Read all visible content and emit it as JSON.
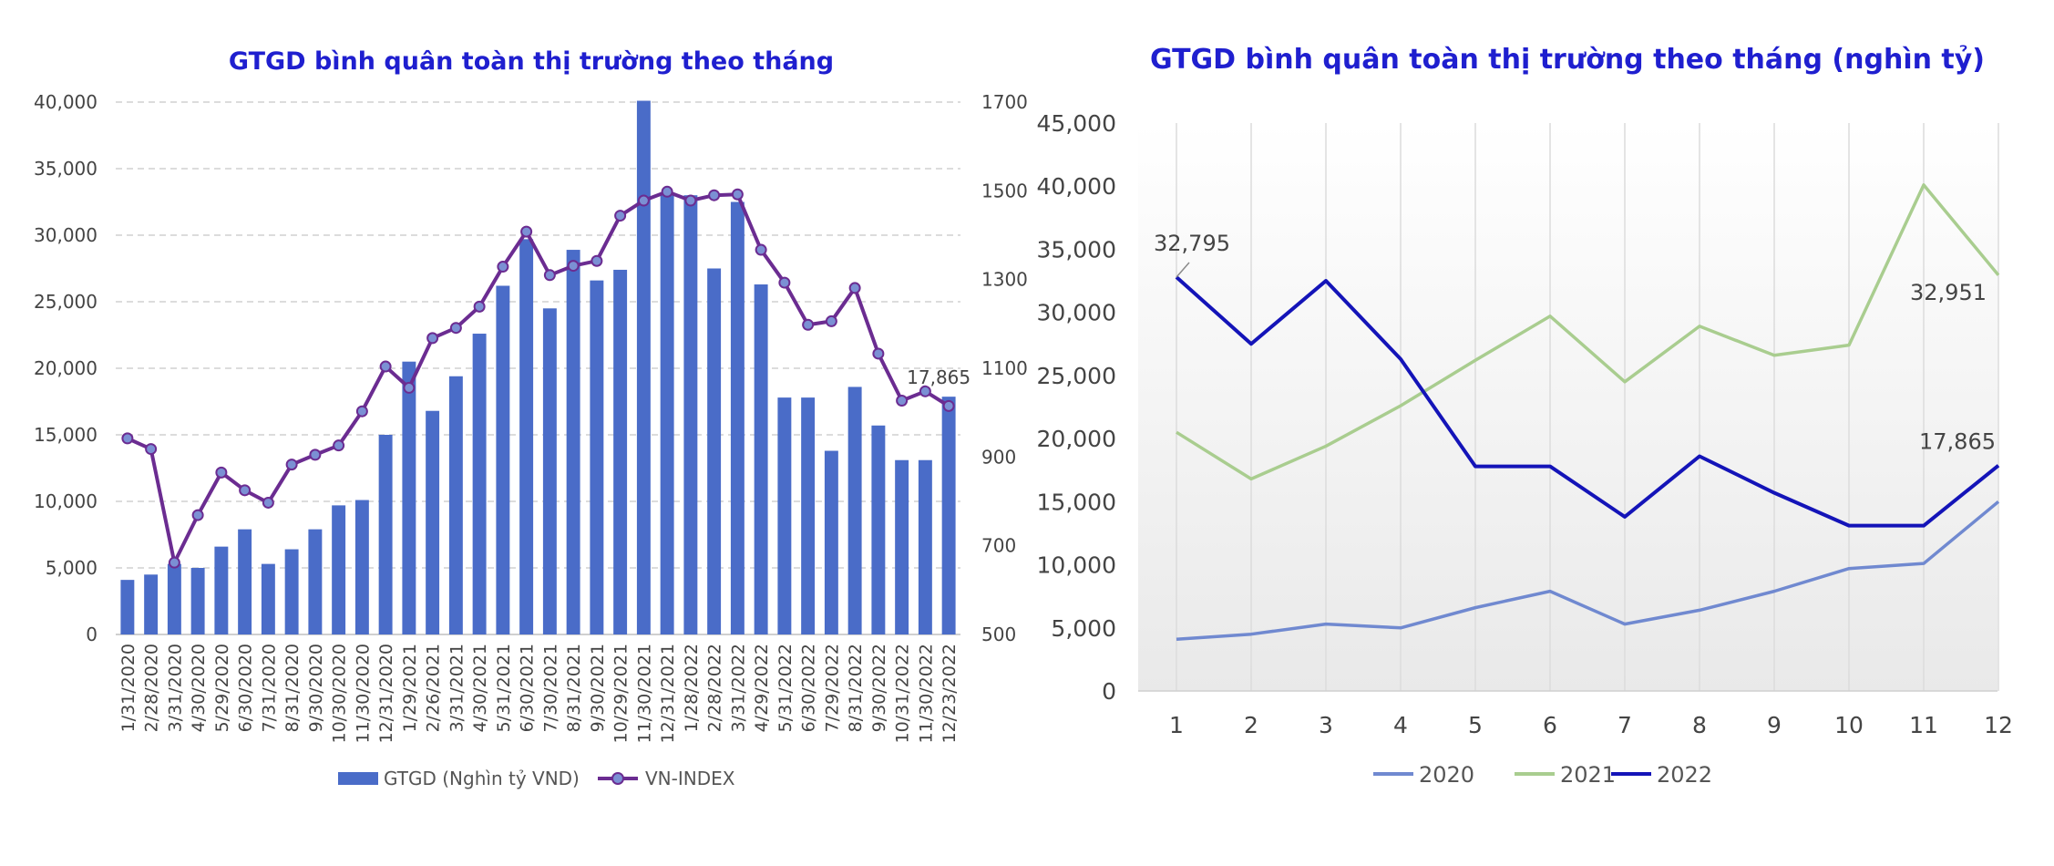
{
  "colors": {
    "title": "#1f1fcf",
    "bar": "#4a6cc8",
    "vnindex": "#6b2c91",
    "vnindex_marker": "#7b90d4",
    "s2020": "#7089d0",
    "s2021": "#a9cd8f",
    "s2022": "#1414b8"
  },
  "chart_data": [
    {
      "type": "bar+line",
      "title": "GTGD bình quân toàn thị trường theo tháng",
      "categories": [
        "1/31/2020",
        "2/28/2020",
        "3/31/2020",
        "4/30/2020",
        "5/29/2020",
        "6/30/2020",
        "7/31/2020",
        "8/31/2020",
        "9/30/2020",
        "10/30/2020",
        "11/30/2020",
        "12/31/2020",
        "1/29/2021",
        "2/26/2021",
        "3/31/2021",
        "4/30/2021",
        "5/31/2021",
        "6/30/2021",
        "7/30/2021",
        "8/31/2021",
        "9/30/2021",
        "10/29/2021",
        "11/30/2021",
        "12/31/2021",
        "1/28/2022",
        "2/28/2022",
        "3/31/2022",
        "4/29/2022",
        "5/31/2022",
        "6/30/2022",
        "7/29/2022",
        "8/31/2022",
        "9/30/2022",
        "10/31/2022",
        "11/30/2022",
        "12/23/2022"
      ],
      "series": [
        {
          "name": "GTGD (Nghìn tỷ VND)",
          "axis": "left",
          "kind": "bar",
          "values": [
            4100,
            4500,
            5300,
            5000,
            6600,
            7900,
            5300,
            6400,
            7900,
            9700,
            10100,
            15000,
            20500,
            16800,
            19400,
            22600,
            26200,
            29700,
            24500,
            28900,
            26600,
            27400,
            40100,
            33000,
            33000,
            27500,
            32500,
            26300,
            17800,
            17800,
            13800,
            18600,
            15700,
            13100,
            13100,
            17865
          ]
        },
        {
          "name": "VN-INDEX",
          "axis": "right",
          "kind": "line",
          "values": [
            942,
            918,
            662,
            769,
            865,
            825,
            797,
            883,
            905,
            926,
            1003,
            1104,
            1056,
            1168,
            1191,
            1239,
            1329,
            1408,
            1310,
            1331,
            1342,
            1444,
            1478,
            1498,
            1478,
            1490,
            1492,
            1367,
            1293,
            1198,
            1206,
            1281,
            1133,
            1027,
            1048,
            1015
          ]
        }
      ],
      "y_left": {
        "min": 0,
        "max": 40000,
        "ticks": [
          "0",
          "5,000",
          "10,000",
          "15,000",
          "20,000",
          "25,000",
          "30,000",
          "35,000",
          "40,000"
        ]
      },
      "y_right": {
        "min": 500,
        "max": 1700,
        "ticks": [
          "500",
          "700",
          "900",
          "1100",
          "1300",
          "1500",
          "1700"
        ]
      },
      "grid": true,
      "legend": "bottom",
      "annotations": [
        {
          "text": "17,865",
          "category": "12/23/2022"
        }
      ]
    },
    {
      "type": "line",
      "title": "GTGD bình quân toàn thị trường theo tháng (nghìn tỷ)",
      "x": [
        "1",
        "2",
        "3",
        "4",
        "5",
        "6",
        "7",
        "8",
        "9",
        "10",
        "11",
        "12"
      ],
      "series": [
        {
          "name": "2020",
          "values": [
            4100,
            4500,
            5300,
            5000,
            6600,
            7900,
            5300,
            6400,
            7900,
            9700,
            10100,
            15000
          ]
        },
        {
          "name": "2021",
          "values": [
            20500,
            16800,
            19400,
            22600,
            26200,
            29700,
            24500,
            28900,
            26600,
            27400,
            40100,
            32951
          ]
        },
        {
          "name": "2022",
          "values": [
            32795,
            27500,
            32500,
            26300,
            17800,
            17800,
            13800,
            18600,
            15700,
            13100,
            13100,
            17865
          ]
        }
      ],
      "ylim": [
        0,
        45000
      ],
      "y_ticks": [
        "0",
        "5,000",
        "10,000",
        "15,000",
        "20,000",
        "25,000",
        "30,000",
        "35,000",
        "40,000",
        "45,000"
      ],
      "grid": true,
      "legend": "bottom",
      "annotations": [
        {
          "text": "32,795",
          "series": "2022",
          "x": "1"
        },
        {
          "text": "32,951",
          "series": "2021",
          "x": "12"
        },
        {
          "text": "17,865",
          "series": "2022",
          "x": "12"
        }
      ]
    }
  ]
}
